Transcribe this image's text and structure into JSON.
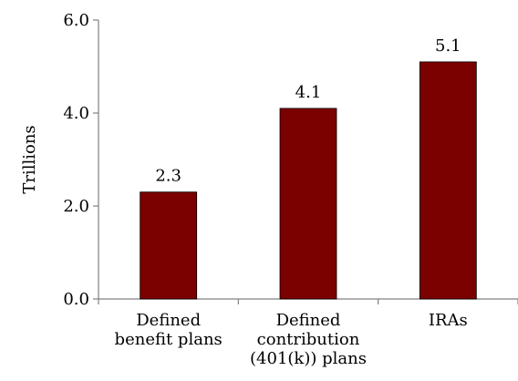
{
  "chart_data": {
    "type": "bar",
    "categories": [
      [
        "Defined",
        "benefit plans"
      ],
      [
        "Defined",
        "contribution",
        "(401(k)) plans"
      ],
      [
        "IRAs"
      ]
    ],
    "values": [
      2.3,
      4.1,
      5.1
    ],
    "data_labels": [
      "2.3",
      "4.1",
      "5.1"
    ],
    "title": "",
    "xlabel": "",
    "ylabel": "Trillions",
    "ylim": [
      0,
      6
    ],
    "yticks": [
      0,
      2,
      4,
      6
    ],
    "ytick_labels": [
      "0.0",
      "2.0",
      "4.0",
      "6.0"
    ],
    "grid": false,
    "legend": "none",
    "bar_color": "#7b0000"
  }
}
